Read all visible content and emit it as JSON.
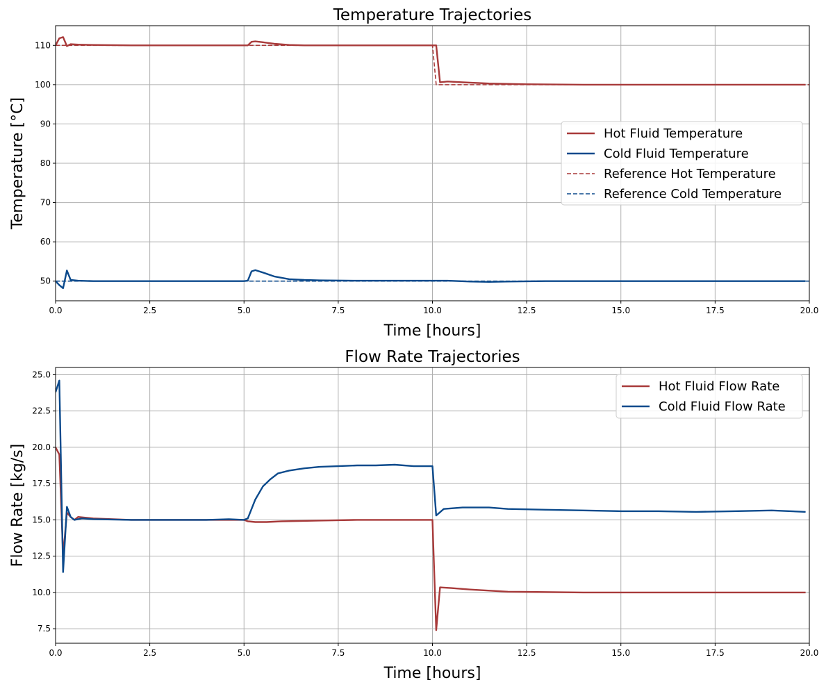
{
  "chart_data": [
    {
      "type": "line",
      "title": "Temperature Trajectories",
      "xlabel": "Time [hours]",
      "ylabel": "Temperature [°C]",
      "xlim": [
        0,
        20
      ],
      "ylim": [
        45,
        115
      ],
      "xticks": [
        0,
        2.5,
        5,
        7.5,
        10,
        12.5,
        15,
        17.5,
        20
      ],
      "xtick_labels": [
        "0.0",
        "2.5",
        "5.0",
        "7.5",
        "10.0",
        "12.5",
        "15.0",
        "17.5",
        "20.0"
      ],
      "yticks": [
        50,
        60,
        70,
        80,
        90,
        100,
        110
      ],
      "ytick_labels": [
        "50",
        "60",
        "70",
        "80",
        "90",
        "100",
        "110"
      ],
      "grid": true,
      "legend_position": "center-right",
      "series": [
        {
          "name": "Hot Fluid Temperature",
          "color": "#a83a3a",
          "style": "solid",
          "x": [
            0,
            0.1,
            0.2,
            0.3,
            0.4,
            0.6,
            1.0,
            2.0,
            3.0,
            4.0,
            5.0,
            5.1,
            5.2,
            5.3,
            5.5,
            5.8,
            6.2,
            6.6,
            7.0,
            8.0,
            9.0,
            10.0,
            10.1,
            10.2,
            10.4,
            10.8,
            11.5,
            12.5,
            14.0,
            16.0,
            18.0,
            19.9
          ],
          "y": [
            110,
            111.8,
            112.1,
            109.8,
            110.3,
            110.2,
            110.1,
            110.0,
            110.0,
            110.0,
            110.0,
            110.0,
            110.9,
            111.0,
            110.8,
            110.4,
            110.1,
            110.0,
            110.0,
            110.0,
            110.0,
            110.0,
            110.0,
            100.6,
            100.8,
            100.6,
            100.3,
            100.1,
            100.0,
            100.0,
            100.0,
            100.0
          ]
        },
        {
          "name": "Cold Fluid Temperature",
          "color": "#0c4a8c",
          "style": "solid",
          "x": [
            0,
            0.1,
            0.2,
            0.3,
            0.4,
            0.6,
            1.0,
            2.0,
            3.0,
            4.0,
            5.0,
            5.1,
            5.2,
            5.3,
            5.5,
            5.8,
            6.2,
            6.6,
            7.0,
            8.0,
            9.0,
            10.0,
            10.4,
            11.0,
            11.5,
            12.0,
            13.0,
            15.0,
            17.0,
            19.9
          ],
          "y": [
            50,
            49,
            48.2,
            52.7,
            50.3,
            50.1,
            50.0,
            50.0,
            50.0,
            50.0,
            50.0,
            50.1,
            52.5,
            52.8,
            52.2,
            51.2,
            50.5,
            50.3,
            50.2,
            50.1,
            50.1,
            50.1,
            50.1,
            49.9,
            49.8,
            49.9,
            50.0,
            50.0,
            50.0,
            50.0
          ]
        },
        {
          "name": "Reference Hot Temperature",
          "color": "#a83a3a",
          "style": "dashed",
          "x": [
            0,
            10.0,
            10.1,
            20.0
          ],
          "y": [
            110,
            110,
            100,
            100
          ]
        },
        {
          "name": "Reference Cold Temperature",
          "color": "#0c4a8c",
          "style": "dashed",
          "x": [
            0,
            20.0
          ],
          "y": [
            50,
            50
          ]
        }
      ]
    },
    {
      "type": "line",
      "title": "Flow Rate Trajectories",
      "xlabel": "Time [hours]",
      "ylabel": "Flow Rate [kg/s]",
      "xlim": [
        0,
        20
      ],
      "ylim": [
        6.5,
        25.5
      ],
      "xticks": [
        0,
        2.5,
        5,
        7.5,
        10,
        12.5,
        15,
        17.5,
        20
      ],
      "xtick_labels": [
        "0.0",
        "2.5",
        "5.0",
        "7.5",
        "10.0",
        "12.5",
        "15.0",
        "17.5",
        "20.0"
      ],
      "yticks": [
        7.5,
        10,
        12.5,
        15,
        17.5,
        20,
        22.5,
        25
      ],
      "ytick_labels": [
        "7.5",
        "10.0",
        "12.5",
        "15.0",
        "17.5",
        "20.0",
        "22.5",
        "25.0"
      ],
      "grid": true,
      "legend_position": "top-right",
      "series": [
        {
          "name": "Hot Fluid Flow Rate",
          "color": "#a83a3a",
          "style": "solid",
          "x": [
            0,
            0.1,
            0.2,
            0.3,
            0.4,
            0.5,
            0.6,
            1.0,
            2.0,
            3.0,
            4.0,
            5.0,
            5.1,
            5.3,
            5.6,
            6.0,
            7.0,
            8.0,
            9.0,
            10.0,
            10.1,
            10.2,
            10.5,
            11.0,
            12.0,
            14.0,
            16.0,
            18.0,
            19.9
          ],
          "y": [
            20.0,
            19.5,
            12.5,
            15.5,
            15.2,
            15.0,
            15.2,
            15.1,
            15.0,
            15.0,
            15.0,
            15.0,
            14.9,
            14.85,
            14.85,
            14.9,
            14.95,
            15.0,
            15.0,
            15.0,
            7.4,
            10.35,
            10.3,
            10.2,
            10.05,
            10.0,
            10.0,
            10.0,
            10.0
          ]
        },
        {
          "name": "Cold Fluid Flow Rate",
          "color": "#0c4a8c",
          "style": "solid",
          "x": [
            0,
            0.1,
            0.2,
            0.3,
            0.4,
            0.5,
            0.7,
            1.0,
            2.0,
            3.0,
            4.0,
            4.6,
            5.0,
            5.1,
            5.3,
            5.5,
            5.7,
            5.9,
            6.2,
            6.6,
            7.0,
            7.5,
            8.0,
            8.5,
            9.0,
            9.5,
            10.0,
            10.1,
            10.3,
            10.8,
            11.5,
            12.0,
            13.0,
            14.0,
            15.0,
            16.0,
            17.0,
            18.0,
            19.0,
            19.9
          ],
          "y": [
            23.8,
            24.6,
            11.4,
            15.9,
            15.2,
            15.0,
            15.1,
            15.05,
            15.0,
            15.0,
            15.0,
            15.05,
            15.0,
            15.1,
            16.4,
            17.3,
            17.8,
            18.2,
            18.4,
            18.55,
            18.65,
            18.7,
            18.75,
            18.75,
            18.8,
            18.7,
            18.7,
            15.3,
            15.75,
            15.85,
            15.85,
            15.75,
            15.7,
            15.65,
            15.6,
            15.6,
            15.55,
            15.6,
            15.65,
            15.55
          ]
        }
      ]
    }
  ]
}
